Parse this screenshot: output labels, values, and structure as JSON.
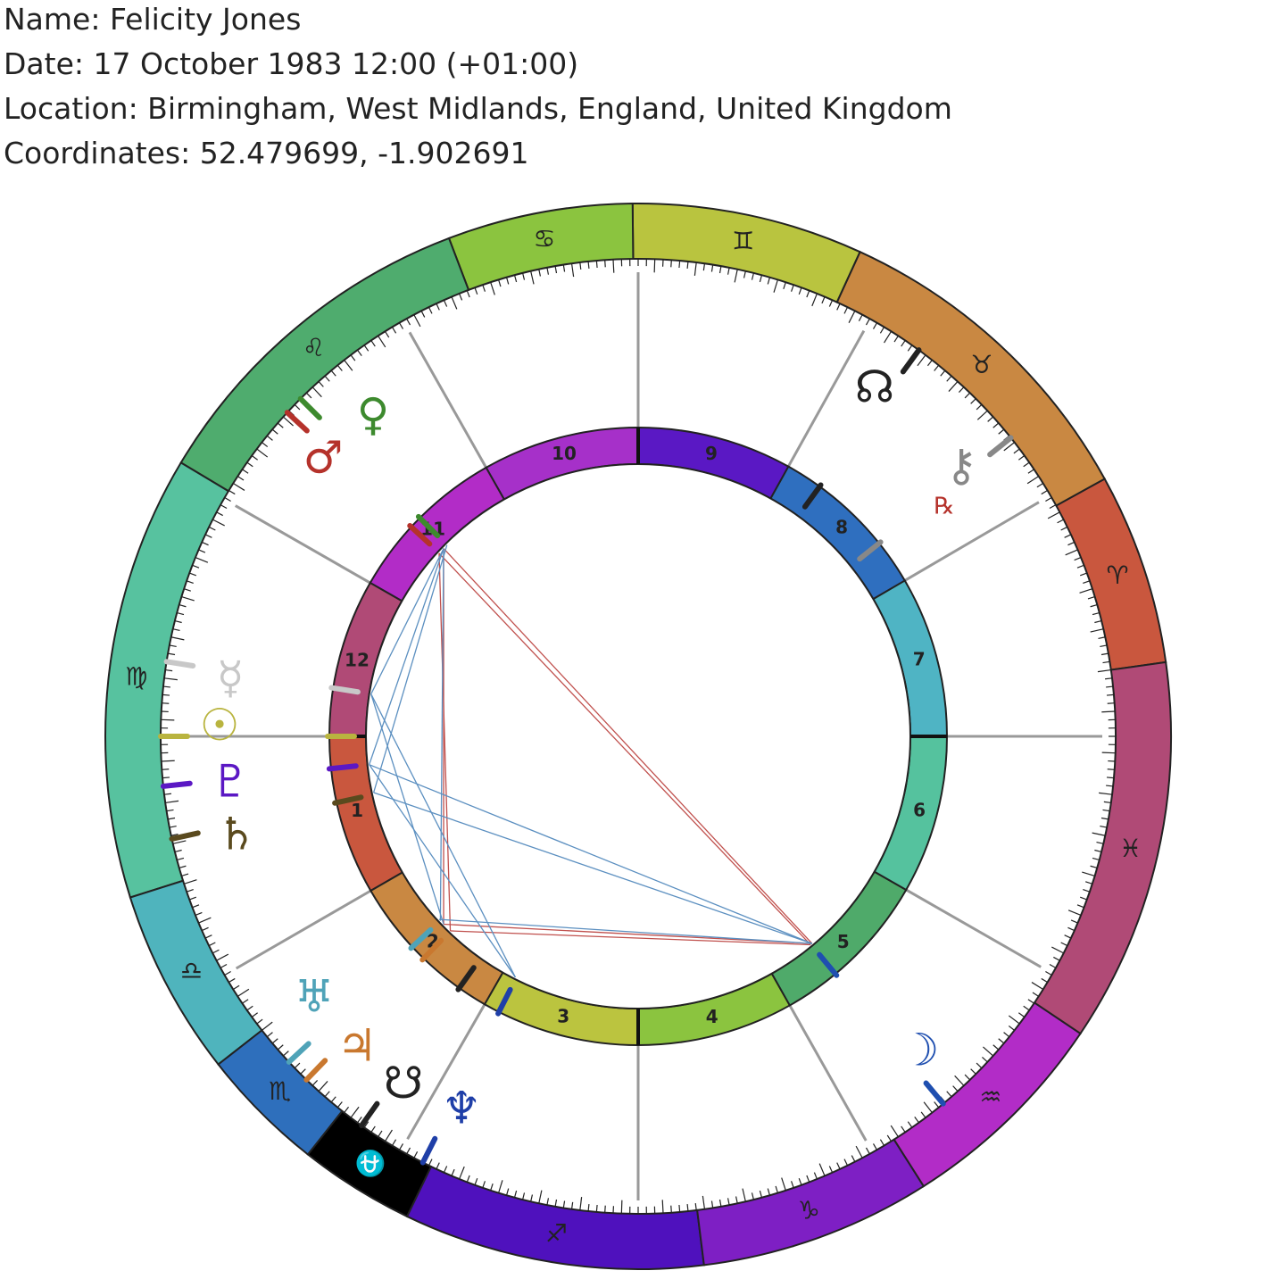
{
  "header": {
    "name": "Name: Felicity Jones",
    "date": "Date: 17 October 1983 12:00 (+01:00)",
    "location": "Location: Birmingham, West Midlands, England, United Kingdom",
    "coordinates": "Coordinates: 52.479699, -1.902691"
  },
  "signs": [
    "♈",
    "♉",
    "♊",
    "♋",
    "♌",
    "♍",
    "♎",
    "♏",
    "⛎",
    "♐",
    "♑",
    "♒",
    "♓"
  ],
  "houses": [
    "1",
    "2",
    "3",
    "4",
    "5",
    "6",
    "7",
    "8",
    "9",
    "10",
    "11",
    "12"
  ],
  "planets": [
    "☊",
    "⚷",
    "♀",
    "♂",
    "☿",
    "☉",
    "♇",
    "♄",
    "♅",
    "♃",
    "☋",
    "♆",
    "☽"
  ],
  "retrograde": "℞"
}
